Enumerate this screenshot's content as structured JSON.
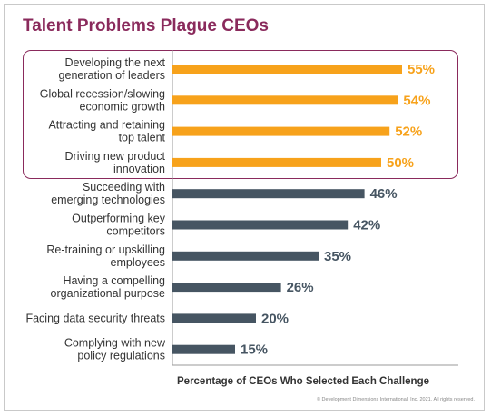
{
  "chart_data": {
    "type": "bar",
    "orientation": "horizontal",
    "title": "Talent Problems Plague CEOs",
    "xlabel": "Percentage of CEOs Who Selected Each Challenge",
    "ylabel": "",
    "xlim": [
      0,
      55
    ],
    "value_suffix": "%",
    "categories": [
      [
        "Developing the next",
        "generation of leaders"
      ],
      [
        "Global recession/slowing",
        "economic growth"
      ],
      [
        "Attracting and retaining",
        "top talent"
      ],
      [
        "Driving new product",
        "innovation"
      ],
      [
        "Succeeding with",
        "emerging technologies"
      ],
      [
        "Outperforming key",
        "competitors"
      ],
      [
        "Re-training or upskilling",
        "employees"
      ],
      [
        "Having a compelling",
        "organizational purpose"
      ],
      [
        "Facing data security threats"
      ],
      [
        "Complying with new",
        "policy regulations"
      ]
    ],
    "values": [
      55,
      54,
      52,
      50,
      46,
      42,
      35,
      26,
      20,
      15
    ],
    "highlighted": [
      true,
      true,
      true,
      true,
      false,
      false,
      false,
      false,
      false,
      false
    ],
    "colors": {
      "highlight": "#f7a21b",
      "normal": "#465562",
      "highlight_label": "#f7a21b",
      "normal_label": "#465562",
      "title": "#8a2a5c",
      "frame_highlight": "#8a2a5c"
    },
    "grid": false,
    "legend": "none"
  },
  "footer": {
    "copyright": "© Development Dimensions International, Inc. 2021. All rights reserved."
  }
}
